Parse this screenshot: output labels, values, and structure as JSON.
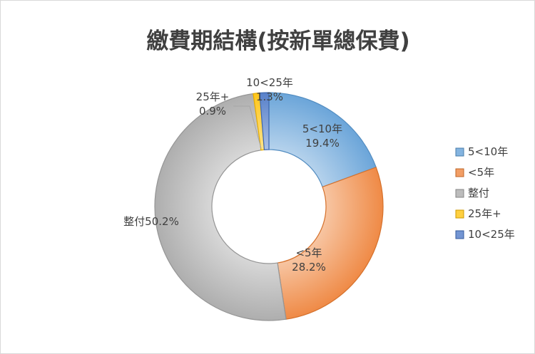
{
  "chart_data": {
    "type": "pie",
    "donut": true,
    "title": "繳費期結構(按新單總保費)",
    "legend_position": "right",
    "slices": [
      {
        "name": "5<10年",
        "value": 19.4,
        "label": [
          "5<10年",
          "19.4%"
        ],
        "color": "#5b9bd5"
      },
      {
        "name": "<5年",
        "value": 28.2,
        "label": [
          "<5年",
          "28.2%"
        ],
        "color": "#ed7d31"
      },
      {
        "name": "整付",
        "value": 50.2,
        "label": [
          "整付50.2%"
        ],
        "color": "#a5a5a5"
      },
      {
        "name": "25年+",
        "value": 0.9,
        "label": [
          "25年+",
          "0.9%"
        ],
        "color": "#ffc000"
      },
      {
        "name": "10<25年",
        "value": 1.3,
        "label": [
          "10<25年",
          "1.3%"
        ],
        "color": "#4472c4"
      }
    ]
  }
}
